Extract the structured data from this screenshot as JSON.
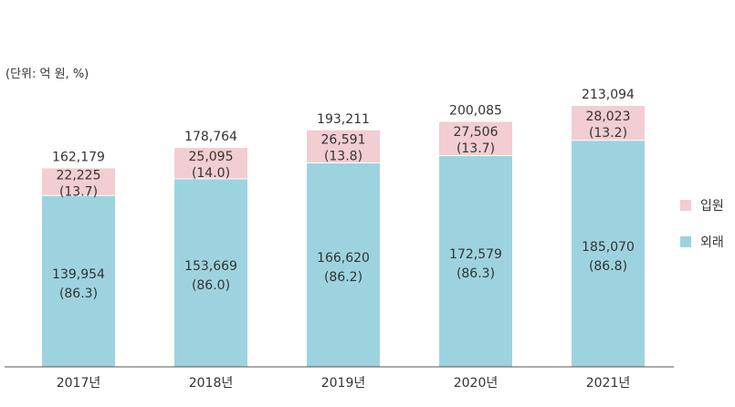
{
  "chart_data": {
    "type": "bar",
    "stacked": true,
    "unit_label": "(단위: 억 원, %)",
    "categories": [
      "2017년",
      "2018년",
      "2019년",
      "2020년",
      "2021년"
    ],
    "totals": [
      "162,179",
      "178,764",
      "193,211",
      "200,085",
      "213,094"
    ],
    "series": [
      {
        "name": "외래",
        "color": "#9dd3df",
        "values": [
          139954,
          153669,
          166620,
          172579,
          185070
        ],
        "value_labels": [
          "139,954",
          "153,669",
          "166,620",
          "172,579",
          "185,070"
        ],
        "share_labels": [
          "(86.3)",
          "(86.0)",
          "(86.2)",
          "(86.3)",
          "(86.8)"
        ]
      },
      {
        "name": "입원",
        "color": "#f2cdd1",
        "values": [
          22225,
          25095,
          26591,
          27506,
          28023
        ],
        "value_labels": [
          "22,225",
          "25,095",
          "26,591",
          "27,506",
          "28,023"
        ],
        "share_labels": [
          "(13.7)",
          "(14.0)",
          "(13.8)",
          "(13.7)",
          "(13.2)"
        ]
      }
    ],
    "legend": [
      {
        "name": "입원",
        "color": "#f2cdd1"
      },
      {
        "name": "외래",
        "color": "#9dd3df"
      }
    ],
    "ylim": [
      0,
      240000
    ],
    "grid": false,
    "legend_position": "right"
  }
}
